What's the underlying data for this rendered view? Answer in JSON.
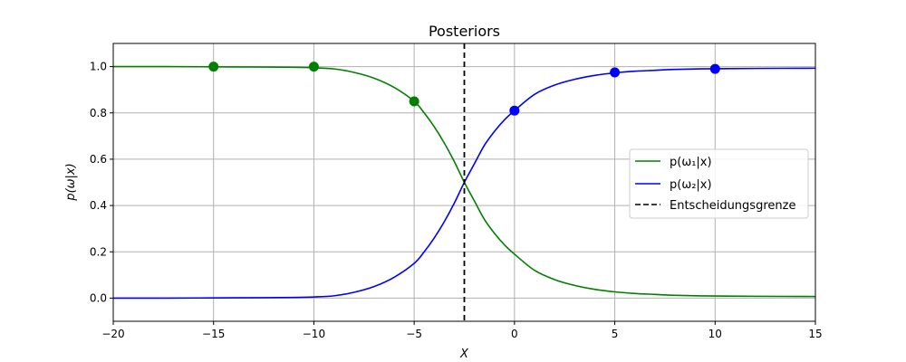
{
  "chart_data": {
    "type": "line",
    "title": "Posteriors",
    "xlabel": "X",
    "ylabel": "p(ω|x)",
    "xlim": [
      -20,
      15
    ],
    "ylim": [
      -0.1,
      1.1
    ],
    "xticks": [
      -20,
      -15,
      -10,
      -5,
      0,
      5,
      10,
      15
    ],
    "yticks": [
      0.0,
      0.2,
      0.4,
      0.6,
      0.8,
      1.0
    ],
    "xtick_labels": [
      "−20",
      "−15",
      "−10",
      "−5",
      "0",
      "5",
      "10",
      "15"
    ],
    "ytick_labels": [
      "0.0",
      "0.2",
      "0.4",
      "0.6",
      "0.8",
      "1.0"
    ],
    "grid": true,
    "legend_position": "center-right",
    "series": [
      {
        "name": "p(ω₁|x)",
        "color": "#008000",
        "style": "solid",
        "x": [
          -20,
          -17.5,
          -15,
          -12.5,
          -11,
          -10,
          -9,
          -8,
          -7,
          -6,
          -5,
          -4.5,
          -4,
          -3.5,
          -3,
          -2.5,
          -2,
          -1.5,
          -1,
          -0.5,
          0,
          1,
          2,
          3,
          4,
          5,
          6,
          7,
          8,
          10,
          12,
          15
        ],
        "y": [
          1.0,
          1.0,
          0.999,
          0.998,
          0.997,
          0.995,
          0.99,
          0.975,
          0.95,
          0.91,
          0.85,
          0.8,
          0.74,
          0.67,
          0.59,
          0.5,
          0.42,
          0.34,
          0.28,
          0.23,
          0.19,
          0.12,
          0.08,
          0.055,
          0.038,
          0.027,
          0.02,
          0.016,
          0.012,
          0.009,
          0.008,
          0.007
        ]
      },
      {
        "name": "p(ω₂|x)",
        "color": "#0000ff",
        "style": "solid",
        "x": [
          -20,
          -17.5,
          -15,
          -12.5,
          -11,
          -10,
          -9,
          -8,
          -7,
          -6,
          -5,
          -4.5,
          -4,
          -3.5,
          -3,
          -2.5,
          -2,
          -1.5,
          -1,
          -0.5,
          0,
          1,
          2,
          3,
          4,
          5,
          6,
          7,
          8,
          10,
          12,
          15
        ],
        "y": [
          0.0,
          0.0,
          0.001,
          0.002,
          0.003,
          0.005,
          0.01,
          0.025,
          0.05,
          0.09,
          0.15,
          0.2,
          0.26,
          0.33,
          0.41,
          0.5,
          0.58,
          0.66,
          0.72,
          0.77,
          0.81,
          0.88,
          0.92,
          0.945,
          0.962,
          0.973,
          0.98,
          0.984,
          0.988,
          0.991,
          0.992,
          0.993
        ]
      },
      {
        "name": "Entscheidungsgrenze",
        "color": "#000000",
        "style": "dashed",
        "vline_x": -2.5
      }
    ],
    "points": [
      {
        "series": "p(ω₁|x)",
        "x": -15,
        "y": 1.0,
        "color": "#008000"
      },
      {
        "series": "p(ω₁|x)",
        "x": -10,
        "y": 1.0,
        "color": "#008000"
      },
      {
        "series": "p(ω₁|x)",
        "x": -5,
        "y": 0.85,
        "color": "#008000"
      },
      {
        "series": "p(ω₂|x)",
        "x": 0,
        "y": 0.81,
        "color": "#0000ff"
      },
      {
        "series": "p(ω₂|x)",
        "x": 5,
        "y": 0.975,
        "color": "#0000ff"
      },
      {
        "series": "p(ω₂|x)",
        "x": 10,
        "y": 0.99,
        "color": "#0000ff"
      }
    ]
  }
}
